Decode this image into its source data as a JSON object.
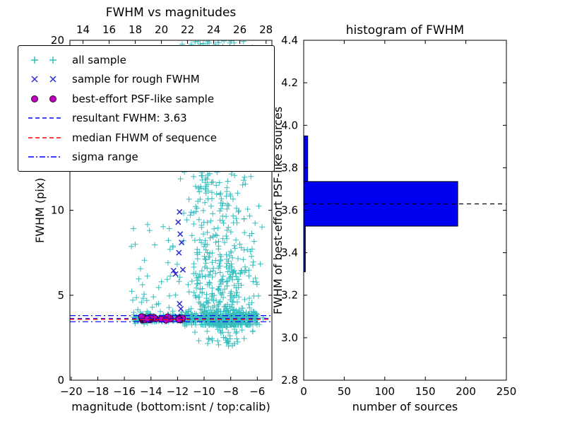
{
  "figure": {
    "background": "#ffffff"
  },
  "chart_data": [
    {
      "id": "fwhm-vs-magnitudes",
      "type": "scatter",
      "title": "FWHM vs magnitudes",
      "xlabel": "magnitude (bottom:isnt / top:calib)",
      "ylabel": "FWHM (pix)",
      "xlim": [
        -20.1,
        -4.9
      ],
      "ylim": [
        0,
        20
      ],
      "xticks": [
        -20,
        -18,
        -16,
        -14,
        -12,
        -10,
        -8,
        -6
      ],
      "xtick_labels": [
        "−20",
        "−18",
        "−16",
        "−14",
        "−12",
        "−10",
        "−8",
        "−6"
      ],
      "yticks": [
        0,
        5,
        10,
        15,
        20
      ],
      "ytick_labels": [
        "0",
        "5",
        "10",
        "15",
        "20"
      ],
      "top_axis": {
        "lim": [
          13.0,
          28.45
        ],
        "ticks": [
          14,
          16,
          18,
          20,
          22,
          24,
          26,
          28
        ],
        "tick_labels": [
          "14",
          "16",
          "18",
          "20",
          "22",
          "24",
          "26",
          "28"
        ]
      },
      "grid": false,
      "legend_position": "upper left",
      "legend_labels": [
        "all sample",
        "sample for rough FWHM",
        "best-effort PSF-like sample",
        "resultant FWHM: 3.63",
        "median FHWM of sequence",
        "sigma range"
      ],
      "series": [
        {
          "name": "all sample",
          "marker": "plus",
          "color": "#35bdbd",
          "approx_count": 1530,
          "clusters": [
            {
              "n": 200,
              "x": {
                "dist": "uniform",
                "min": -15.3,
                "max": -11.5
              },
              "y": {
                "dist": "normal",
                "mean": 3.62,
                "sd": 0.1
              }
            },
            {
              "n": 330,
              "x": {
                "dist": "uniform",
                "min": -11.5,
                "max": -6.0
              },
              "y": {
                "dist": "normal",
                "mean": 3.68,
                "sd": 0.18
              }
            },
            {
              "n": 600,
              "x": {
                "dist": "normal",
                "mean": -8.3,
                "sd": 1.2,
                "min": -11.8,
                "max": -5.5
              },
              "y": {
                "dist": "power",
                "min": 3.25,
                "max": 20.5,
                "exp": 2.6
              }
            },
            {
              "n": 170,
              "x": {
                "dist": "normal",
                "mean": -10.2,
                "sd": 0.6,
                "min": -11.9,
                "max": -8.8
              },
              "y": {
                "dist": "power",
                "min": 4.0,
                "max": 20.5,
                "exp": 1.2
              }
            },
            {
              "n": 130,
              "x": {
                "dist": "normal",
                "mean": -9.2,
                "sd": 1.0,
                "min": -11.5,
                "max": -6.5
              },
              "y": {
                "dist": "uniform",
                "min": 13.0,
                "max": 20.5
              }
            },
            {
              "n": 55,
              "x": {
                "dist": "uniform",
                "min": -15.5,
                "max": -11.6
              },
              "y": {
                "dist": "power",
                "min": 3.8,
                "max": 9.5,
                "exp": 2.0
              }
            },
            {
              "n": 45,
              "x": {
                "dist": "normal",
                "mean": -8.2,
                "sd": 1.3,
                "min": -11.0,
                "max": -5.8
              },
              "y": {
                "dist": "uniform",
                "min": 2.0,
                "max": 3.3
              }
            }
          ]
        },
        {
          "name": "sample for rough FWHM",
          "marker": "x",
          "color": "#2b2bd0",
          "points": [
            [
              -11.85,
              9.9
            ],
            [
              -11.95,
              9.3
            ],
            [
              -11.8,
              8.6
            ],
            [
              -11.7,
              8.1
            ],
            [
              -11.9,
              7.5
            ],
            [
              -11.6,
              6.5
            ],
            [
              -12.3,
              6.45
            ],
            [
              -12.15,
              6.25
            ],
            [
              -11.85,
              4.5
            ],
            [
              -11.75,
              4.2
            ],
            [
              -12.0,
              3.75
            ],
            [
              -11.65,
              3.6
            ],
            [
              -12.5,
              3.68
            ],
            [
              -13.2,
              3.6
            ],
            [
              -14.1,
              3.64
            ],
            [
              -12.9,
              3.55
            ]
          ]
        },
        {
          "name": "best-effort PSF-like sample",
          "marker": "circle",
          "color": "#bf00bf",
          "edge_color": "#40003f",
          "clusters": [
            {
              "n": 34,
              "x": {
                "dist": "power",
                "min": -14.7,
                "max": -11.6,
                "exp": 1.6
              },
              "y": {
                "dist": "normal",
                "mean": 3.62,
                "sd": 0.05
              }
            }
          ]
        }
      ],
      "hlines": [
        {
          "name": "resultant FWHM: 3.63",
          "y": 3.63,
          "dash": "dashed",
          "color": "#0000ff"
        },
        {
          "name": "median FHWM of sequence",
          "y": 3.58,
          "dash": "dashed",
          "color": "#ff0000"
        },
        {
          "name": "sigma range",
          "y": 3.44,
          "dash": "dashdot",
          "color": "#0000ff"
        },
        {
          "name": "sigma range",
          "y": 3.8,
          "dash": "dashdot",
          "color": "#0000ff"
        }
      ]
    },
    {
      "id": "histogram-of-fwhm",
      "type": "bar",
      "orientation": "horizontal",
      "title": "histogram of FWHM",
      "xlabel": "number of sources",
      "ylabel": "FWHM of best-effort PSF-like sources",
      "xlim": [
        0,
        250
      ],
      "ylim": [
        2.8,
        4.4
      ],
      "xticks": [
        0,
        50,
        100,
        150,
        200,
        250
      ],
      "xtick_labels": [
        "0",
        "50",
        "100",
        "150",
        "200",
        "250"
      ],
      "yticks": [
        2.8,
        3.0,
        3.2,
        3.4,
        3.6,
        3.8,
        4.0,
        4.2,
        4.4
      ],
      "ytick_labels": [
        "2.8",
        "3.0",
        "3.2",
        "3.4",
        "3.6",
        "3.8",
        "4.0",
        "4.2",
        "4.4"
      ],
      "bar_color": "#0000f0",
      "bar_edge_color": "#000000",
      "bins": [
        {
          "from": 3.31,
          "to": 3.525,
          "count": 2
        },
        {
          "from": 3.525,
          "to": 3.735,
          "count": 190
        },
        {
          "from": 3.735,
          "to": 3.95,
          "count": 5
        }
      ],
      "median_line": {
        "y": 3.63,
        "dash": "dashed",
        "color": "#000000"
      }
    }
  ]
}
